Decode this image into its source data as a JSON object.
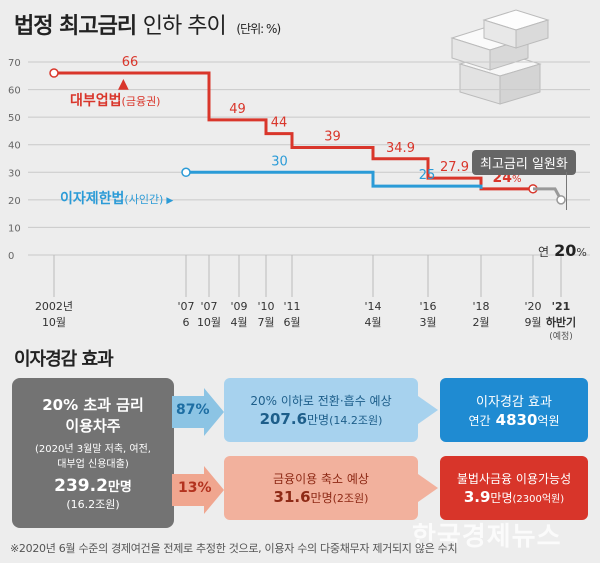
{
  "header": {
    "title_bold": "법정 최고금리",
    "title_light": "인하 추이",
    "unit": "(단위: %)"
  },
  "colors": {
    "lender": "#d9362b",
    "private": "#2b9bd7",
    "future": "#999999",
    "grid": "#c9c9c9"
  },
  "chart_data": {
    "type": "line",
    "ylim": [
      0,
      70
    ],
    "yticks": [
      0,
      10,
      20,
      30,
      40,
      50,
      60,
      70
    ],
    "x_ticks": [
      {
        "id": "2002-10",
        "top": "2002년",
        "bottom": "10월"
      },
      {
        "id": "2007-06",
        "top": "'07",
        "bottom": "6"
      },
      {
        "id": "2007-10",
        "top": "'07",
        "bottom": "10월"
      },
      {
        "id": "2009-04",
        "top": "'09",
        "bottom": "4월"
      },
      {
        "id": "2010-07",
        "top": "'10",
        "bottom": "7월"
      },
      {
        "id": "2011-06",
        "top": "'11",
        "bottom": "6월"
      },
      {
        "id": "2014-04",
        "top": "'14",
        "bottom": "4월"
      },
      {
        "id": "2016-03",
        "top": "'16",
        "bottom": "3월"
      },
      {
        "id": "2018-02",
        "top": "'18",
        "bottom": "2월"
      },
      {
        "id": "2020-09",
        "top": "'20",
        "bottom": "9월"
      },
      {
        "id": "2021-H2",
        "top": "'21",
        "bottom": "하반기",
        "note": "(예정)"
      }
    ],
    "series": [
      {
        "name": "대부업법",
        "suffix": "(금융권)",
        "color": "#d9362b",
        "points": [
          {
            "x": "2002-10",
            "y": 66
          },
          {
            "x": "2007-10",
            "y": 49
          },
          {
            "x": "2010-07",
            "y": 44
          },
          {
            "x": "2011-06",
            "y": 39
          },
          {
            "x": "2014-04",
            "y": 34.9
          },
          {
            "x": "2016-03",
            "y": 27.9
          },
          {
            "x": "2018-02",
            "y": 24
          },
          {
            "x": "2020-09",
            "y": 24
          }
        ],
        "labels": [
          "66",
          "49",
          "44",
          "39",
          "34.9",
          "27.9",
          "24"
        ]
      },
      {
        "name": "이자제한법",
        "suffix": "(사인간)",
        "color": "#2b9bd7",
        "points": [
          {
            "x": "2007-06",
            "y": 30
          },
          {
            "x": "2014-04",
            "y": 25
          },
          {
            "x": "2018-02",
            "y": 24
          }
        ],
        "labels": [
          "30",
          "25"
        ]
      },
      {
        "name": "future",
        "color": "#999999",
        "points": [
          {
            "x": "2020-09",
            "y": 24
          },
          {
            "x": "2021-H2",
            "y": 20
          }
        ]
      }
    ],
    "annotations": {
      "unify": "최고금리 일원화",
      "final_prefix": "연",
      "final_value": "20",
      "final_unit": "%",
      "label_24_unit": "%"
    }
  },
  "effect": {
    "title": "이자경감 효과",
    "source_box": {
      "line1": "20% 초과 금리",
      "line2": "이용차주",
      "note1": "(2020년 3월말 저축, 여전,",
      "note2": "대부업 신용대출)",
      "value": "239.2",
      "value_unit": "만명",
      "sub": "(16.2조원)"
    },
    "row1": {
      "pct": "87%",
      "mid_title": "20% 이하로 전환·흡수 예상",
      "mid_value": "207.6",
      "mid_unit": "만명",
      "mid_sub": "(14.2조원)",
      "right_title": "이자경감 효과",
      "right_prefix": "연간",
      "right_value": "4830",
      "right_unit": "억원"
    },
    "row2": {
      "pct": "13%",
      "mid_title": "금융이용 축소 예상",
      "mid_value": "31.6",
      "mid_unit": "만명",
      "mid_sub": "(2조원)",
      "right_title": "불법사금융 이용가능성",
      "right_value": "3.9",
      "right_unit": "만명",
      "right_sub": "(2300억원)"
    }
  },
  "footnote": "※2020년 6월 수준의 경제여건을 전제로 추정한 것으로, 이용자 수의 다중채무자 제거되지 않은 수치",
  "watermark": "한국경제뉴스"
}
